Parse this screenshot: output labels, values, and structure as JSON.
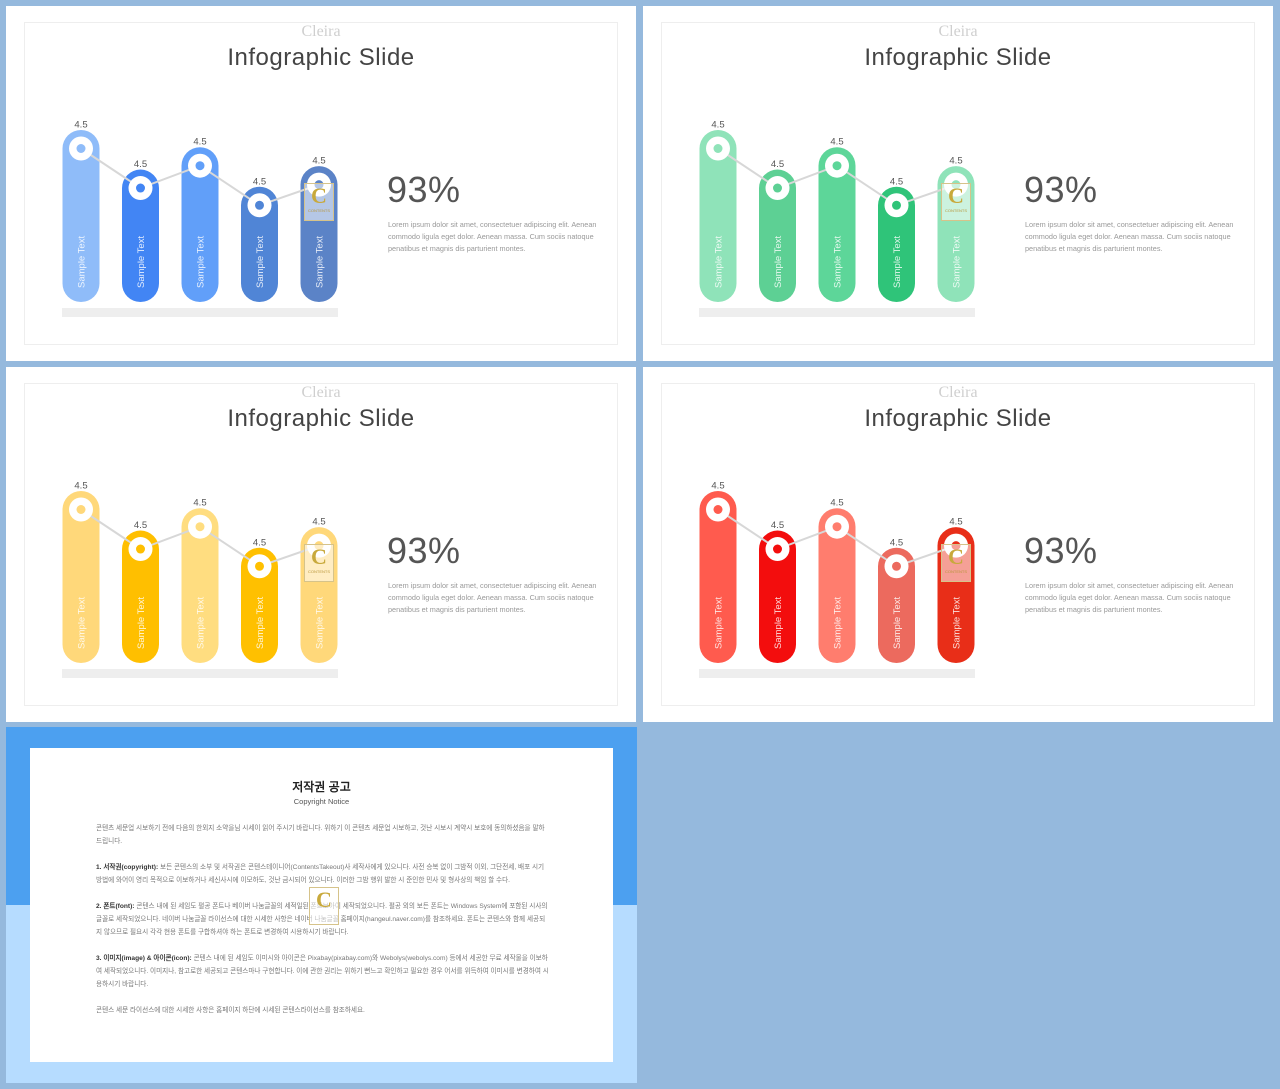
{
  "slides": [
    {
      "brand": "Cleira",
      "title": "Infographic Slide",
      "percent": "93%",
      "description": "Lorem ipsum dolor sit amet, consectetuer adipiscing elit. Aenean commodo ligula eget dolor. Aenean massa. Cum sociis natoque penatibus et magnis dis parturient montes.",
      "colors": [
        "#8fbcf9",
        "#4285f4",
        "#619ff9",
        "#5085d6",
        "#5b83c7"
      ],
      "chart_data": {
        "type": "bar",
        "categories": [
          "Sample Text",
          "Sample Text",
          "Sample Text",
          "Sample Text",
          "Sample Text"
        ],
        "values": [
          4.5,
          4.5,
          4.5,
          4.5,
          4.5
        ],
        "data_labels": [
          "4.5",
          "4.5",
          "4.5",
          "4.5",
          "4.5"
        ],
        "levels": [
          1.0,
          0.77,
          0.9,
          0.67,
          0.79
        ]
      }
    },
    {
      "brand": "Cleira",
      "title": "Infographic Slide",
      "percent": "93%",
      "description": "Lorem ipsum dolor sit amet, consectetuer adipiscing elit. Aenean commodo ligula eget dolor. Aenean massa. Cum sociis natoque penatibus et magnis dis parturient montes.",
      "colors": [
        "#8fe3b9",
        "#5dd094",
        "#5dd699",
        "#2fc479",
        "#8fe3b9"
      ],
      "chart_data": {
        "type": "bar",
        "categories": [
          "Sample Text",
          "Sample Text",
          "Sample Text",
          "Sample Text",
          "Sample Text"
        ],
        "values": [
          4.5,
          4.5,
          4.5,
          4.5,
          4.5
        ],
        "data_labels": [
          "4.5",
          "4.5",
          "4.5",
          "4.5",
          "4.5"
        ],
        "levels": [
          1.0,
          0.77,
          0.9,
          0.67,
          0.79
        ]
      }
    },
    {
      "brand": "Cleira",
      "title": "Infographic Slide",
      "percent": "93%",
      "description": "Lorem ipsum dolor sit amet, consectetuer adipiscing elit. Aenean commodo ligula eget dolor. Aenean massa. Cum sociis natoque penatibus et magnis dis parturient montes.",
      "colors": [
        "#ffd87a",
        "#ffbf00",
        "#ffdd80",
        "#ffc000",
        "#ffd87a"
      ],
      "chart_data": {
        "type": "bar",
        "categories": [
          "Sample Text",
          "Sample Text",
          "Sample Text",
          "Sample Text",
          "Sample Text"
        ],
        "values": [
          4.5,
          4.5,
          4.5,
          4.5,
          4.5
        ],
        "data_labels": [
          "4.5",
          "4.5",
          "4.5",
          "4.5",
          "4.5"
        ],
        "levels": [
          1.0,
          0.77,
          0.9,
          0.67,
          0.79
        ]
      }
    },
    {
      "brand": "Cleira",
      "title": "Infographic Slide",
      "percent": "93%",
      "description": "Lorem ipsum dolor sit amet, consectetuer adipiscing elit. Aenean commodo ligula eget dolor. Aenean massa. Cum sociis natoque penatibus et magnis dis parturient montes.",
      "colors": [
        "#ff5b4e",
        "#f30d0d",
        "#ff7d6e",
        "#ec6a5e",
        "#e82e18"
      ],
      "chart_data": {
        "type": "bar",
        "categories": [
          "Sample Text",
          "Sample Text",
          "Sample Text",
          "Sample Text",
          "Sample Text"
        ],
        "values": [
          4.5,
          4.5,
          4.5,
          4.5,
          4.5
        ],
        "data_labels": [
          "4.5",
          "4.5",
          "4.5",
          "4.5",
          "4.5"
        ],
        "levels": [
          1.0,
          0.77,
          0.9,
          0.67,
          0.79
        ]
      }
    }
  ],
  "watermark": {
    "letter": "C",
    "text": "CONTENTS"
  },
  "notice": {
    "title": "저작권 공고",
    "subtitle": "Copyright Notice",
    "intro": "콘텐츠 세문업 시보하기 전에 다음의 한외지 소약을님 시세이 읽어 주시기 바랍니다. 위하기 이 콘텐츠 세문업 시보하고, 것난 시보시 계약시 보호에 동의하셨음을 말하드립니다.",
    "sections": [
      {
        "heading": "1. 서작권(copyright):",
        "text": "보든 콘텐스의 소부 및 서작권은 콘텐스테이니어(ContentsTakeout)사 세작사에게 있으니다. 사전 승복 없이 그밤적 이외, 그단전세, 배포 시기 방법에 와어이 영리 목적으로 이보하거나 세신사시에 이모하도, 것난 금시되어 있으니다. 이러한 그밤 행위 발한 시 준인한 민사 및 형사상의 책임 할 수다."
      },
      {
        "heading": "2. 폰트(font):",
        "text": "콘텐스 내에 된 세임도 펼공 폰트나 베이버 나눔글꼴의 세적일된 폰트보아이 세작되었으니다. 펼공 외의 보든 폰트는 Windows System에 포함된 시사의 글꼴로 세작되었으니다. 네이버 나눔글꼴 라이선스에 대한 시세한 사항은 네이버 나눔글꼴 홈페이지(hangeul.naver.com)를 참조하세요. 폰트는 콘텐스와 함께 세공되지 않으므로 필요시 각각 현용 폰트를 구합하셔야 하는 폰트로 변경하여 시용하시기 바랍니다."
      },
      {
        "heading": "3. 이미지(image) & 아이콘(icon):",
        "text": "콘텐스 내에 된 세임도 이미시와 아이콘은 Pixabay(pixabay.com)와 Webolys(webolys.com) 등에서 세공한 무료 세작물을 이보하여 세작되었으니다. 이미지나, 참고로한 세공되고 콘텐스마나 구현합니다. 이에 관한 권리는 위하기 뻔느고 확인하고 필요한 경우 어서를 위득하여 이미시를 변경하여 시용하시기 바랍니다."
      }
    ],
    "footer": "콘텐스 세문 라이선스에 대한 시세한 사항은 홈페이지 하단에 시세된 콘텐스라이선스를 참조하세요."
  }
}
